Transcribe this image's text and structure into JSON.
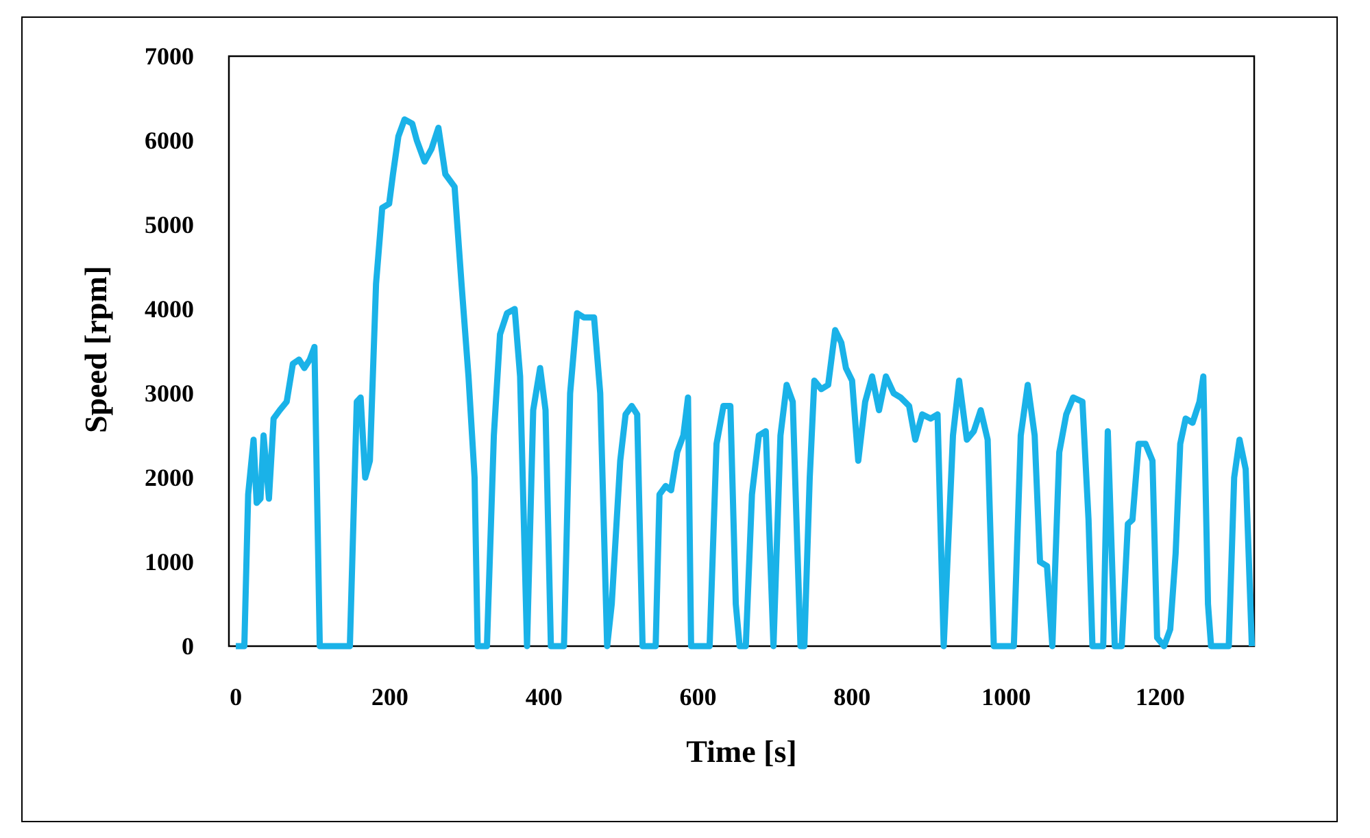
{
  "chart_data": {
    "type": "line",
    "x_label": "Time [s]",
    "y_label": "Speed [rpm]",
    "x": [
      0,
      11,
      16,
      23,
      27,
      32,
      36,
      43,
      49,
      57,
      66,
      74,
      82,
      89,
      96,
      102,
      109,
      148,
      157,
      162,
      168,
      174,
      182,
      190,
      199,
      204,
      211,
      219,
      229,
      235,
      245,
      254,
      263,
      272,
      284,
      293,
      302,
      310,
      314,
      326,
      335,
      343,
      352,
      362,
      369,
      378,
      386,
      395,
      402,
      409,
      426,
      434,
      443,
      452,
      465,
      473,
      482,
      488,
      499,
      506,
      514,
      521,
      528,
      545,
      550,
      558,
      565,
      573,
      581,
      587,
      591,
      615,
      624,
      633,
      642,
      649,
      654,
      662,
      670,
      679,
      688,
      698,
      707,
      715,
      723,
      733,
      738,
      745,
      751,
      760,
      769,
      778,
      786,
      792,
      800,
      808,
      817,
      826,
      835,
      844,
      854,
      863,
      874,
      882,
      891,
      902,
      911,
      919,
      931,
      939,
      949,
      958,
      967,
      976,
      984,
      1010,
      1019,
      1028,
      1037,
      1044,
      1053,
      1060,
      1069,
      1078,
      1087,
      1099,
      1107,
      1112,
      1126,
      1132,
      1141,
      1150,
      1158,
      1164,
      1172,
      1181,
      1190,
      1196,
      1205,
      1213,
      1220,
      1226,
      1233,
      1242,
      1251,
      1256,
      1262,
      1266,
      1289,
      1296,
      1303,
      1311,
      1319
    ],
    "series": [
      {
        "color": "#1ab2e8",
        "values": [
          0,
          0,
          1800,
          2450,
          1700,
          1750,
          2500,
          1750,
          2700,
          2800,
          2900,
          3350,
          3400,
          3300,
          3400,
          3550,
          0,
          0,
          2900,
          2950,
          2000,
          2200,
          4300,
          5200,
          5250,
          5600,
          6050,
          6250,
          6200,
          6000,
          5750,
          5900,
          6150,
          5600,
          5450,
          4300,
          3200,
          2000,
          0,
          0,
          2500,
          3700,
          3950,
          4000,
          3200,
          0,
          2800,
          3300,
          2800,
          0,
          0,
          3000,
          3950,
          3900,
          3900,
          3000,
          0,
          500,
          2200,
          2750,
          2850,
          2750,
          0,
          0,
          1800,
          1900,
          1850,
          2300,
          2500,
          2950,
          0,
          0,
          2400,
          2850,
          2850,
          500,
          0,
          0,
          1800,
          2500,
          2550,
          0,
          2500,
          3100,
          2900,
          0,
          0,
          2000,
          3150,
          3050,
          3100,
          3750,
          3600,
          3300,
          3150,
          2200,
          2900,
          3200,
          2800,
          3200,
          3000,
          2950,
          2850,
          2450,
          2750,
          2700,
          2750,
          0,
          2500,
          3150,
          2450,
          2550,
          2800,
          2450,
          0,
          0,
          2500,
          3100,
          2500,
          1000,
          950,
          0,
          2300,
          2750,
          2950,
          2900,
          1500,
          0,
          0,
          2550,
          0,
          0,
          1450,
          1500,
          2400,
          2400,
          2200,
          100,
          0,
          200,
          1100,
          2400,
          2700,
          2650,
          2900,
          3200,
          500,
          0,
          0,
          2000,
          2450,
          2100,
          0
        ]
      }
    ],
    "xlim": [
      -9,
      1322
    ],
    "xticks": [
      0,
      200,
      400,
      600,
      800,
      1000,
      1200
    ],
    "ylim": [
      0,
      7000
    ],
    "yticks": [
      0,
      1000,
      2000,
      3000,
      4000,
      5000,
      6000,
      7000
    ]
  }
}
